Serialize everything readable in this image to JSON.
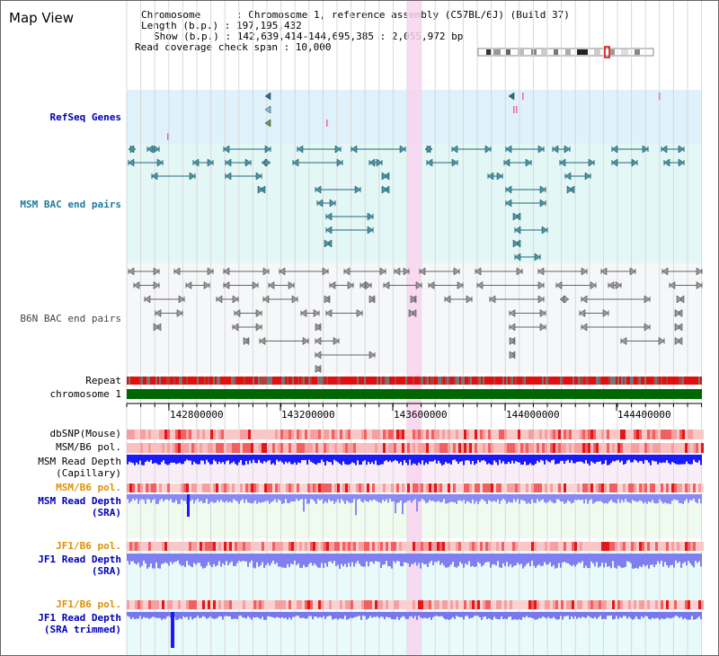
{
  "view": {
    "title": "Map View"
  },
  "assembly": {
    "chromosome_line": "Chromosome      : Chromosome 1, reference assembly (C57BL/6J) (Build 37)",
    "length_line": "Length (b.p.) : 197,195,432",
    "show_line": "Show (b.p.) : 142,639,414-144,695,385 : 2,055,972 bp",
    "coverage_line": "Read coverage check span : 10,000"
  },
  "tracks": {
    "refseq": "RefSeq Genes",
    "msm_bac": "MSM BAC end pairs",
    "b6n_bac": "B6N BAC end pairs",
    "repeat": "Repeat",
    "chromosome": "chromosome 1",
    "dbsnp": "dbSNP(Mouse)",
    "msm_b6_pol": "MSM/B6 pol.",
    "msm_depth_cap_1": "MSM Read Depth",
    "msm_depth_cap_2": "(Capillary)",
    "msm_b6_pol_2": "MSM/B6 pol.",
    "msm_depth_sra_1": "MSM Read Depth",
    "msm_depth_sra_2": "(SRA)",
    "jf1_b6_pol": "JF1/B6 pol.",
    "jf1_depth_sra_1": "JF1 Read Depth",
    "jf1_depth_sra_2": "(SRA)",
    "jf1_b6_pol_2": "JF1/B6 pol.",
    "jf1_depth_trim_1": "JF1 Read Depth",
    "jf1_depth_trim_2": "(SRA trimmed)"
  },
  "axis": {
    "ticks": [
      "142800000",
      "143200000",
      "143600000",
      "144000000",
      "144400000"
    ]
  },
  "colors": {
    "refseq_bg": "#dff1fb",
    "msm_bg": "#e3f7f7",
    "b6n_bg": "#f6f7f9",
    "highlight": "#f8d3ee",
    "chromosome_bar": "#006600",
    "depth_blue": "#1a1aff",
    "depth_light": "#8888ff"
  }
}
